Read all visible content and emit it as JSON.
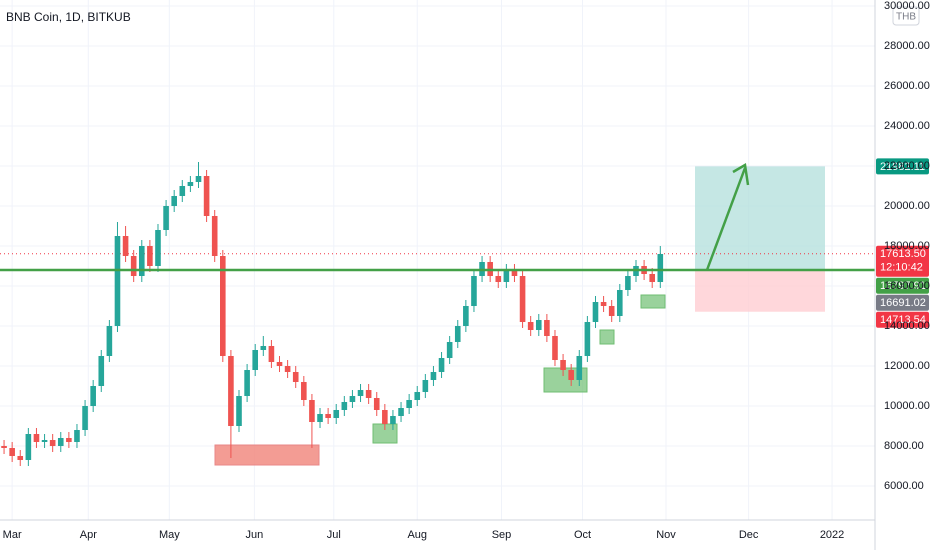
{
  "chart_data": {
    "type": "candlestick",
    "title": "BNB Coin, 1D, BITKUB",
    "currency": "THB",
    "up_color": "#26a69a",
    "down_color": "#ef5350",
    "grid": true,
    "xlim": [
      -0.5,
      107.5
    ],
    "ylim": [
      4300,
      30300
    ],
    "xticks": [
      {
        "value": 1,
        "label": "Mar"
      },
      {
        "value": 10.4,
        "label": "Apr"
      },
      {
        "value": 20.4,
        "label": "May"
      },
      {
        "value": 30.9,
        "label": "Jun"
      },
      {
        "value": 40.7,
        "label": "Jul"
      },
      {
        "value": 51,
        "label": "Aug"
      },
      {
        "value": 61.4,
        "label": "Sep"
      },
      {
        "value": 71.4,
        "label": "Oct"
      },
      {
        "value": 81.7,
        "label": "Nov"
      },
      {
        "value": 91.9,
        "label": "Dec"
      },
      {
        "value": 102.2,
        "label": "2022"
      }
    ],
    "yticks": [
      {
        "value": 6000,
        "label": "6000.00"
      },
      {
        "value": 8000,
        "label": "8000.00"
      },
      {
        "value": 10000,
        "label": "10000.00"
      },
      {
        "value": 12000,
        "label": "12000.00"
      },
      {
        "value": 14000,
        "label": "14000.00"
      },
      {
        "value": 16000,
        "label": "16000.00"
      },
      {
        "value": 18000,
        "label": "18000.00"
      },
      {
        "value": 20000,
        "label": "20000.00"
      },
      {
        "value": 22000,
        "label": "22000.00"
      },
      {
        "value": 24000,
        "label": "24000.00"
      },
      {
        "value": 26000,
        "label": "26000.00"
      },
      {
        "value": 28000,
        "label": "28000.00"
      },
      {
        "value": 30000,
        "label": "30000.00"
      }
    ],
    "open": [
      8000,
      7900,
      7500,
      7300,
      8600,
      8200,
      8300,
      8000,
      8400,
      8200,
      8800,
      10000,
      11000,
      12500,
      14000,
      18500,
      17500,
      16500,
      18000,
      17000,
      18800,
      20000,
      20500,
      21000,
      21200,
      21500,
      19500,
      17500,
      12500,
      9000,
      10500,
      11800,
      12800,
      13000,
      12200,
      12000,
      11700,
      11200,
      10300,
      9200,
      9600,
      9400,
      9800,
      10200,
      10500,
      10800,
      10400,
      9800,
      9100,
      9500,
      9900,
      10300,
      10700,
      11300,
      11700,
      12400,
      13200,
      14000,
      15000,
      16500,
      17200,
      16500,
      16200,
      16800,
      16500,
      14200,
      13800,
      14300,
      13500,
      12300,
      11800,
      11300,
      12500,
      14200,
      15200,
      15000,
      14500,
      15800,
      16500,
      17000,
      16600,
      16200
    ],
    "high": [
      8300,
      8200,
      7800,
      8900,
      8900,
      8600,
      8600,
      8700,
      8700,
      9100,
      10300,
      11300,
      12800,
      14300,
      19200,
      19000,
      17800,
      18300,
      18300,
      19100,
      20300,
      20800,
      21300,
      21500,
      22200,
      21800,
      19800,
      17800,
      12800,
      10800,
      12100,
      13100,
      13500,
      13300,
      12500,
      12300,
      12000,
      11500,
      10600,
      9900,
      9900,
      10100,
      10500,
      10800,
      11100,
      11100,
      10700,
      10100,
      9800,
      10200,
      10600,
      11000,
      11600,
      12000,
      12700,
      13500,
      14300,
      15300,
      16800,
      17500,
      17500,
      16800,
      17100,
      17100,
      16800,
      14500,
      14600,
      14600,
      13800,
      12600,
      12100,
      12800,
      14500,
      15500,
      15500,
      15300,
      16100,
      16800,
      17300,
      17300,
      16900,
      18000
    ],
    "low": [
      7600,
      7200,
      7000,
      7000,
      7900,
      7900,
      7700,
      7700,
      7900,
      7900,
      8500,
      9700,
      10700,
      12200,
      13700,
      17200,
      16200,
      16200,
      16700,
      16700,
      18500,
      19700,
      20200,
      20700,
      20900,
      19200,
      17200,
      12200,
      7400,
      8700,
      10200,
      11500,
      12500,
      11900,
      11700,
      11400,
      10900,
      10000,
      7900,
      8900,
      9100,
      9100,
      9500,
      9900,
      10200,
      10100,
      9500,
      8800,
      8800,
      9200,
      9600,
      10000,
      10400,
      11000,
      11400,
      12100,
      12900,
      13700,
      14700,
      16200,
      16200,
      15900,
      15900,
      16200,
      13900,
      13500,
      13500,
      13200,
      12000,
      11500,
      11000,
      11000,
      12200,
      13900,
      14700,
      14200,
      14200,
      15500,
      16200,
      16300,
      15900,
      15900
    ],
    "close": [
      7900,
      7500,
      7300,
      8600,
      8200,
      8300,
      8000,
      8400,
      8200,
      8800,
      10000,
      11000,
      12500,
      14000,
      18500,
      17500,
      16500,
      18000,
      17000,
      18800,
      20000,
      20500,
      21000,
      21200,
      21500,
      19500,
      17500,
      12500,
      9000,
      10500,
      11800,
      12800,
      13000,
      12200,
      12000,
      11700,
      11200,
      10300,
      9200,
      9600,
      9400,
      9800,
      10200,
      10500,
      10800,
      10400,
      9800,
      9100,
      9500,
      9900,
      10300,
      10700,
      11300,
      11700,
      12400,
      13200,
      14000,
      15000,
      16500,
      17200,
      16500,
      16200,
      16800,
      16500,
      14200,
      13800,
      14300,
      13500,
      12300,
      11800,
      11300,
      12500,
      14200,
      15200,
      15000,
      14500,
      15800,
      16500,
      17000,
      16600,
      16200,
      17600
    ],
    "price_tags": [
      {
        "value": 21982.11,
        "label": "21982.11",
        "color": "#089981"
      },
      {
        "value": 17613.5,
        "label": "17613.50",
        "color": "#f23645"
      },
      {
        "value": 16797.91,
        "label": "16797.91",
        "color": "#43a047"
      },
      {
        "value": 16691.02,
        "label": "16691.02",
        "color": "#787b86"
      },
      {
        "value": 14713.54,
        "label": "14713.54",
        "color": "#f23645"
      }
    ],
    "countdown": "12:10:42"
  }
}
